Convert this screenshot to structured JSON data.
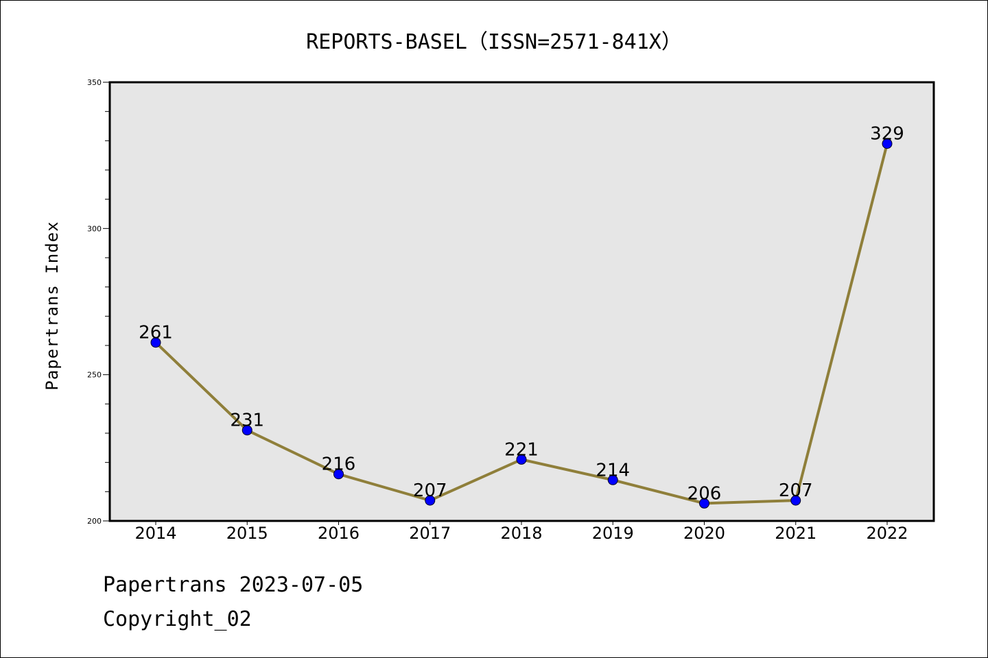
{
  "header": {
    "title": "REPORTS-BASEL（ISSN=2571-841X）"
  },
  "footer": {
    "line1": "Papertrans 2023-07-05",
    "line2": "Copyright_02"
  },
  "colors": {
    "line": "#8f7f3a",
    "marker": "#0000ff",
    "plot_background": "#e6e6e6",
    "axes": "#000000"
  },
  "chart_data": {
    "type": "line",
    "title": "REPORTS-BASEL（ISSN=2571-841X）",
    "xlabel": "",
    "ylabel": "Papertrans Index",
    "categories": [
      "2014",
      "2015",
      "2016",
      "2017",
      "2018",
      "2019",
      "2020",
      "2021",
      "2022"
    ],
    "series": [
      {
        "values": [
          261,
          231,
          216,
          207,
          221,
          214,
          206,
          207,
          329
        ]
      }
    ],
    "ylim": [
      200,
      350
    ],
    "yticks": [
      200,
      250,
      300,
      350
    ],
    "y_minor_step": 10,
    "grid": false,
    "data_labels": true
  }
}
